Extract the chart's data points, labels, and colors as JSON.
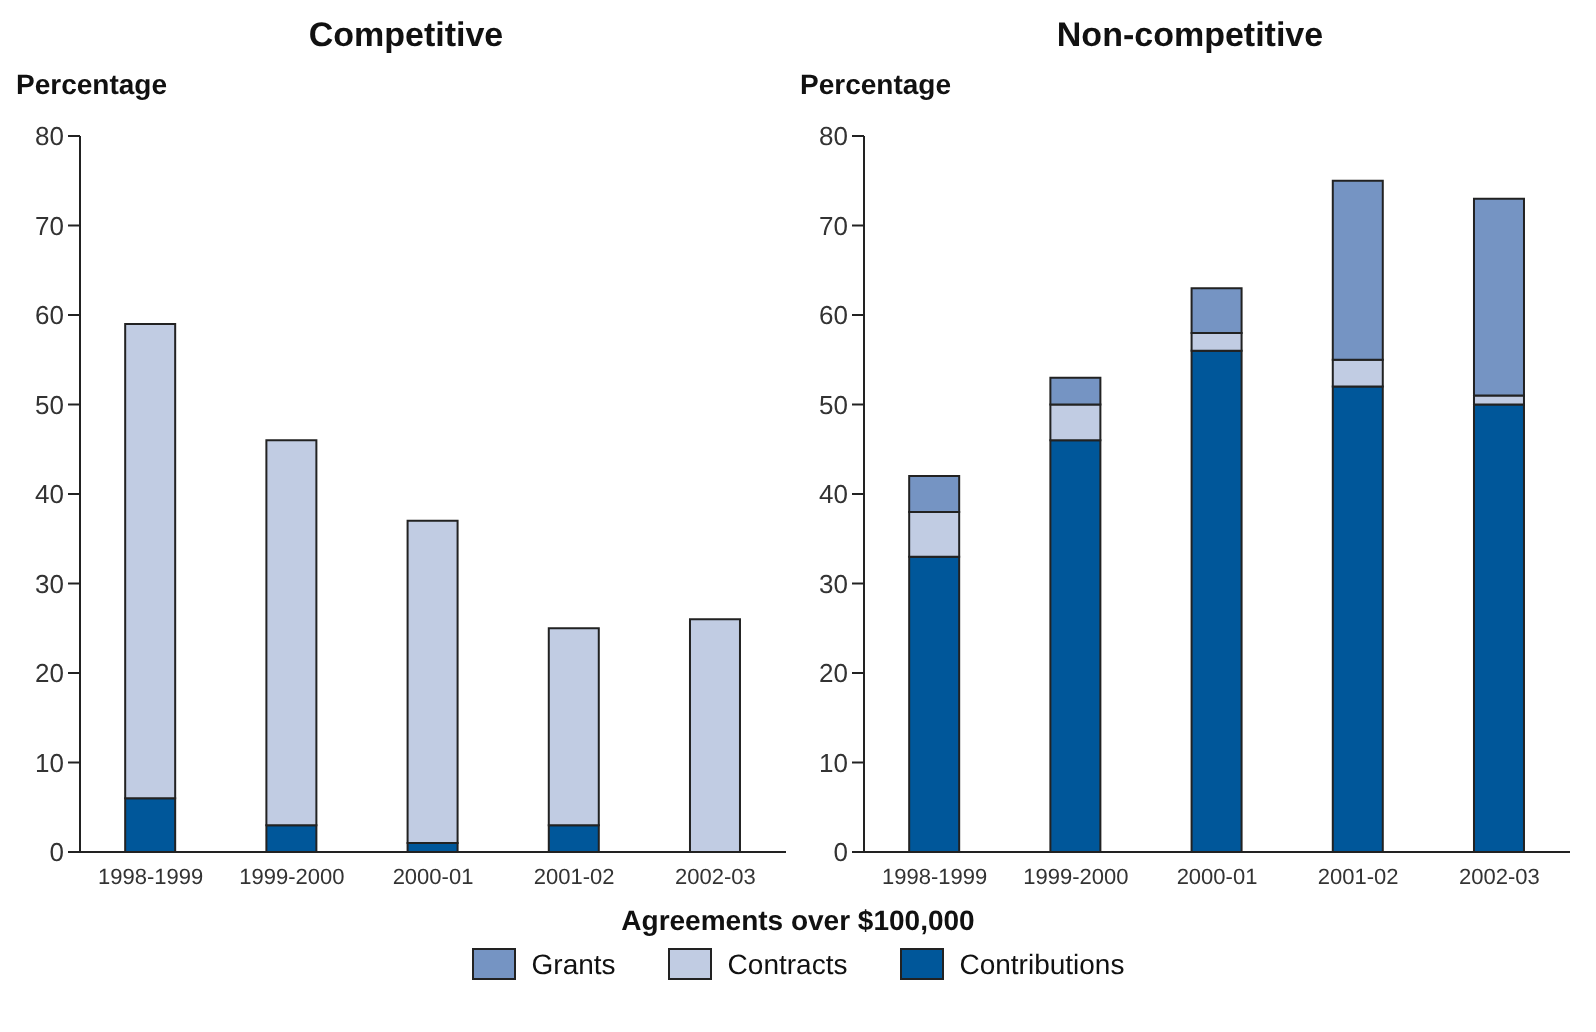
{
  "chart_data": [
    {
      "type": "bar",
      "title": "Competitive",
      "ylabel": "Percentage",
      "xlabel": "Agreements over $100,000",
      "stacked": true,
      "categories": [
        "1998-1999",
        "1999-2000",
        "2000-01",
        "2001-02",
        "2002-03"
      ],
      "ylim": [
        0,
        80
      ],
      "yticks": [
        0,
        10,
        20,
        30,
        40,
        50,
        60,
        70,
        80
      ],
      "grid": false,
      "series": [
        {
          "color": "#00579a",
          "values": [
            6,
            3,
            1,
            3,
            0
          ]
        },
        {
          "color": "#c1cce3",
          "values": [
            53,
            43,
            36,
            22,
            26
          ]
        },
        {
          "color": "#7594c3",
          "values": [
            null,
            null,
            null,
            null,
            null
          ]
        }
      ]
    },
    {
      "type": "bar",
      "title": "Non-competitive",
      "ylabel": "Percentage",
      "stacked": true,
      "legend": "bottom",
      "categories": [
        "1998-1999",
        "1999-2000",
        "2000-01",
        "2001-02",
        "2002-03"
      ],
      "ylim": [
        0,
        80
      ],
      "yticks": [
        0,
        10,
        20,
        30,
        40,
        50,
        60,
        70,
        80
      ],
      "grid": false,
      "series": [
        {
          "name": "Contributions",
          "color": "#00579a",
          "values": [
            33,
            46,
            56,
            52,
            50
          ]
        },
        {
          "name": "Contracts",
          "color": "#c1cce3",
          "values": [
            5,
            4,
            2,
            3,
            1
          ]
        },
        {
          "name": "Grants",
          "color": "#7594c3",
          "values": [
            4,
            3,
            5,
            20,
            22
          ]
        }
      ]
    }
  ]
}
